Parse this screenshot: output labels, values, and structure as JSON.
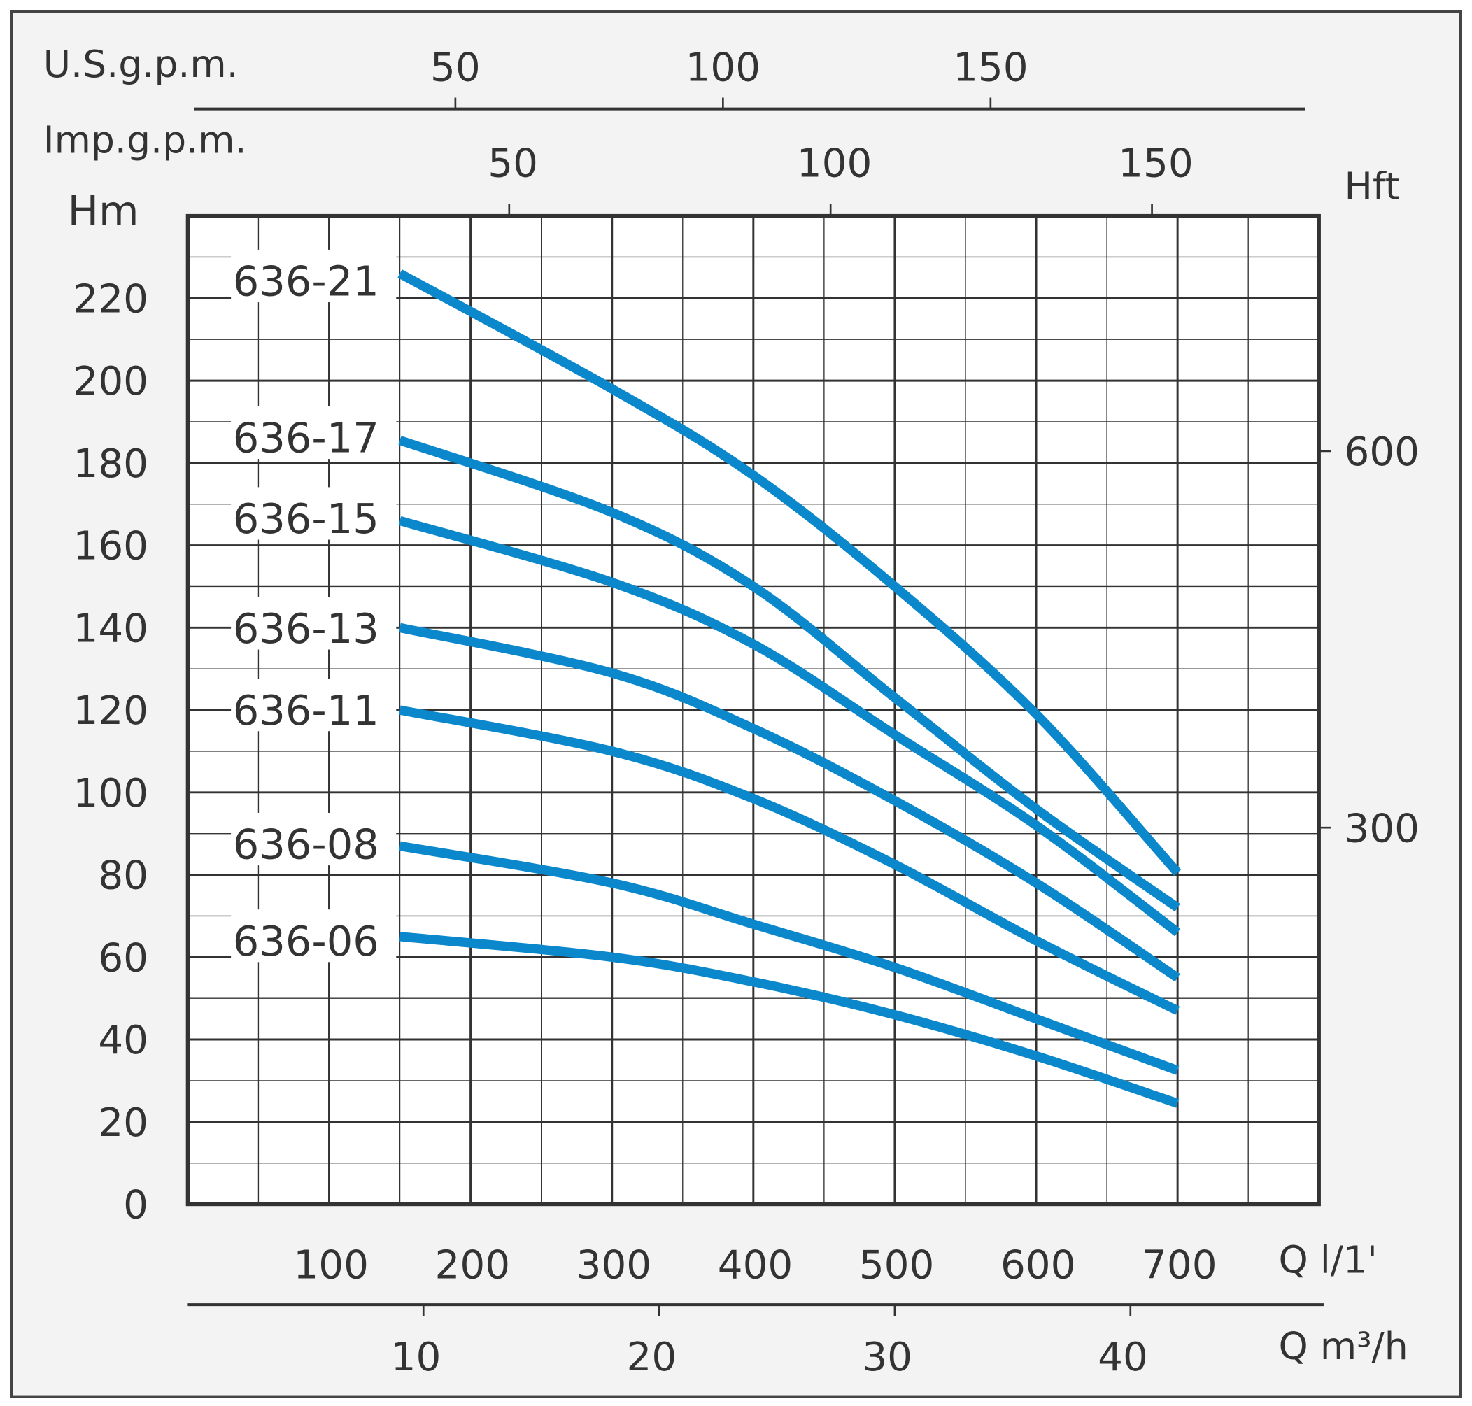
{
  "chart_data": {
    "type": "line",
    "title": "",
    "xlabel": "Q l/1'",
    "xlabel_secondary": "Q m³/h",
    "ylabel": "Hm",
    "ylabel_right": "Hft",
    "top_axis_1_label": "U.S.g.p.m.",
    "top_axis_2_label": "Imp.g.p.m.",
    "xlim": [
      0,
      800
    ],
    "ylim": [
      0,
      240
    ],
    "grid": true,
    "x_ticks": [
      "100",
      "200",
      "300",
      "400",
      "500",
      "600",
      "700"
    ],
    "y_ticks": [
      "0",
      "20",
      "40",
      "60",
      "80",
      "100",
      "120",
      "140",
      "160",
      "180",
      "200",
      "220"
    ],
    "usgpm_ticks": [
      "50",
      "100",
      "150"
    ],
    "impgpm_ticks": [
      "50",
      "100",
      "150"
    ],
    "m3h_ticks": [
      "10",
      "20",
      "30",
      "40"
    ],
    "hft_ticks": [
      "300",
      "600"
    ],
    "line_color": "#0b88cc",
    "x": [
      150,
      300,
      400,
      500,
      600,
      700
    ],
    "series": [
      {
        "name": "636-21",
        "values": [
          226,
          198,
          177,
          150,
          119,
          80.5
        ]
      },
      {
        "name": "636-17",
        "values": [
          185.5,
          168,
          150,
          123,
          96,
          72
        ]
      },
      {
        "name": "636-15",
        "values": [
          166,
          151,
          136,
          114,
          92,
          66
        ]
      },
      {
        "name": "636-13",
        "values": [
          140,
          129,
          115.5,
          98,
          78,
          55
        ]
      },
      {
        "name": "636-11",
        "values": [
          120,
          110,
          98.5,
          82.5,
          64,
          47
        ]
      },
      {
        "name": "636-08",
        "values": [
          87,
          78,
          68,
          57.5,
          45,
          32.5
        ]
      },
      {
        "name": "636-06",
        "values": [
          65,
          60,
          54,
          46,
          36,
          24.5
        ]
      }
    ]
  }
}
